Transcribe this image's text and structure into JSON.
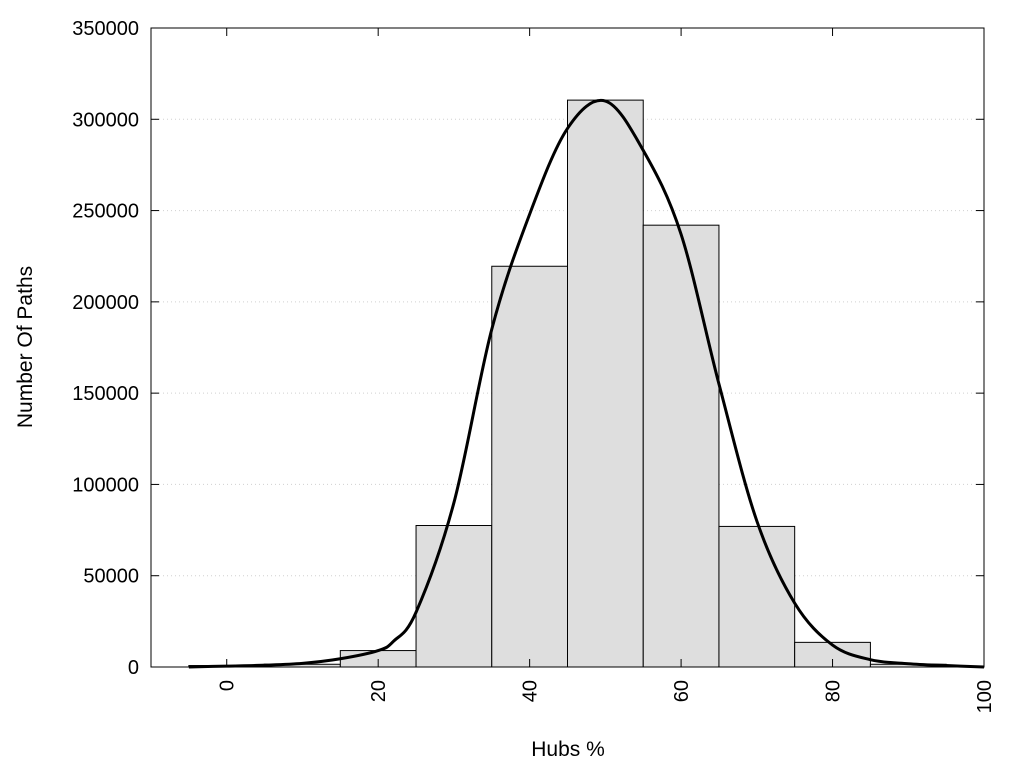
{
  "chart_data": {
    "type": "bar",
    "xlabel": "Hubs %",
    "ylabel": "Number Of Paths",
    "xlim": [
      -10,
      100
    ],
    "ylim": [
      0,
      350000
    ],
    "x_ticks": [
      "0",
      "20",
      "40",
      "60",
      "80",
      "100"
    ],
    "y_ticks": [
      "0",
      "50000",
      "100000",
      "150000",
      "200000",
      "250000",
      "300000",
      "350000"
    ],
    "grid": "horizontal dotted",
    "legend": "none",
    "bins": [
      {
        "x0": -5,
        "x1": 5,
        "value": 800
      },
      {
        "x0": 5,
        "x1": 15,
        "value": 1500
      },
      {
        "x0": 15,
        "x1": 25,
        "value": 9000
      },
      {
        "x0": 25,
        "x1": 35,
        "value": 77500
      },
      {
        "x0": 35,
        "x1": 45,
        "value": 219500
      },
      {
        "x0": 45,
        "x1": 55,
        "value": 310500
      },
      {
        "x0": 55,
        "x1": 65,
        "value": 242000
      },
      {
        "x0": 65,
        "x1": 75,
        "value": 77000
      },
      {
        "x0": 75,
        "x1": 85,
        "value": 13500
      },
      {
        "x0": 85,
        "x1": 95,
        "value": 1500
      },
      {
        "x0": 95,
        "x1": 105,
        "value": 300
      }
    ],
    "curve": {
      "x": [
        -5,
        0,
        5,
        10,
        15,
        20,
        22,
        25,
        30,
        35,
        40,
        45,
        50,
        55,
        60,
        65,
        70,
        75,
        80,
        85,
        90,
        95,
        100
      ],
      "y": [
        0,
        500,
        1000,
        2000,
        4500,
        9000,
        14000,
        30000,
        90000,
        185000,
        248000,
        295000,
        310000,
        283000,
        237000,
        155000,
        80000,
        35000,
        12000,
        4000,
        1800,
        800,
        0
      ]
    },
    "colors": {
      "bar_fill": "#dedede",
      "bar_stroke": "#000000",
      "curve": "#000000",
      "grid": "#d0d0d0",
      "axis": "#000000"
    }
  }
}
